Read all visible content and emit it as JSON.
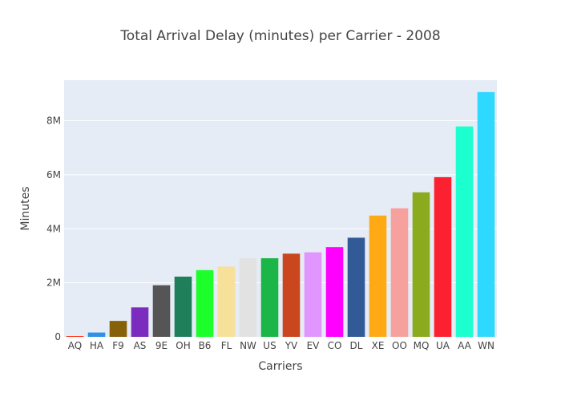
{
  "chart_data": {
    "type": "bar",
    "title": "Total Arrival Delay (minutes) per Carrier - 2008",
    "xlabel": "Carriers",
    "ylabel": "Minutes",
    "ylim": [
      0,
      9500000
    ],
    "yticks": [
      0,
      2000000,
      4000000,
      6000000,
      8000000
    ],
    "ytick_labels": [
      "0",
      "2M",
      "4M",
      "6M",
      "8M"
    ],
    "grid": true,
    "legend": "none",
    "categories": [
      "AQ",
      "HA",
      "F9",
      "AS",
      "9E",
      "OH",
      "B6",
      "FL",
      "NW",
      "US",
      "YV",
      "EV",
      "CO",
      "DL",
      "XE",
      "OO",
      "MQ",
      "UA",
      "AA",
      "WN"
    ],
    "values": [
      30000,
      160000,
      590000,
      1090000,
      1910000,
      2230000,
      2470000,
      2600000,
      2910000,
      2910000,
      3080000,
      3130000,
      3320000,
      3670000,
      4490000,
      4760000,
      5350000,
      5910000,
      7790000,
      9060000
    ],
    "colors": [
      "#FD3216",
      "#2E91E5",
      "#866108",
      "#7B2CBF",
      "#555555",
      "#1F7F5A",
      "#1CFF2B",
      "#F6E09A",
      "#E2E2E2",
      "#1CB547",
      "#C9461E",
      "#E196FF",
      "#FF00FF",
      "#325A97",
      "#FFAA14",
      "#F7A19E",
      "#8BAA1E",
      "#FC2131",
      "#1CFFCE",
      "#2ED9FF"
    ]
  }
}
